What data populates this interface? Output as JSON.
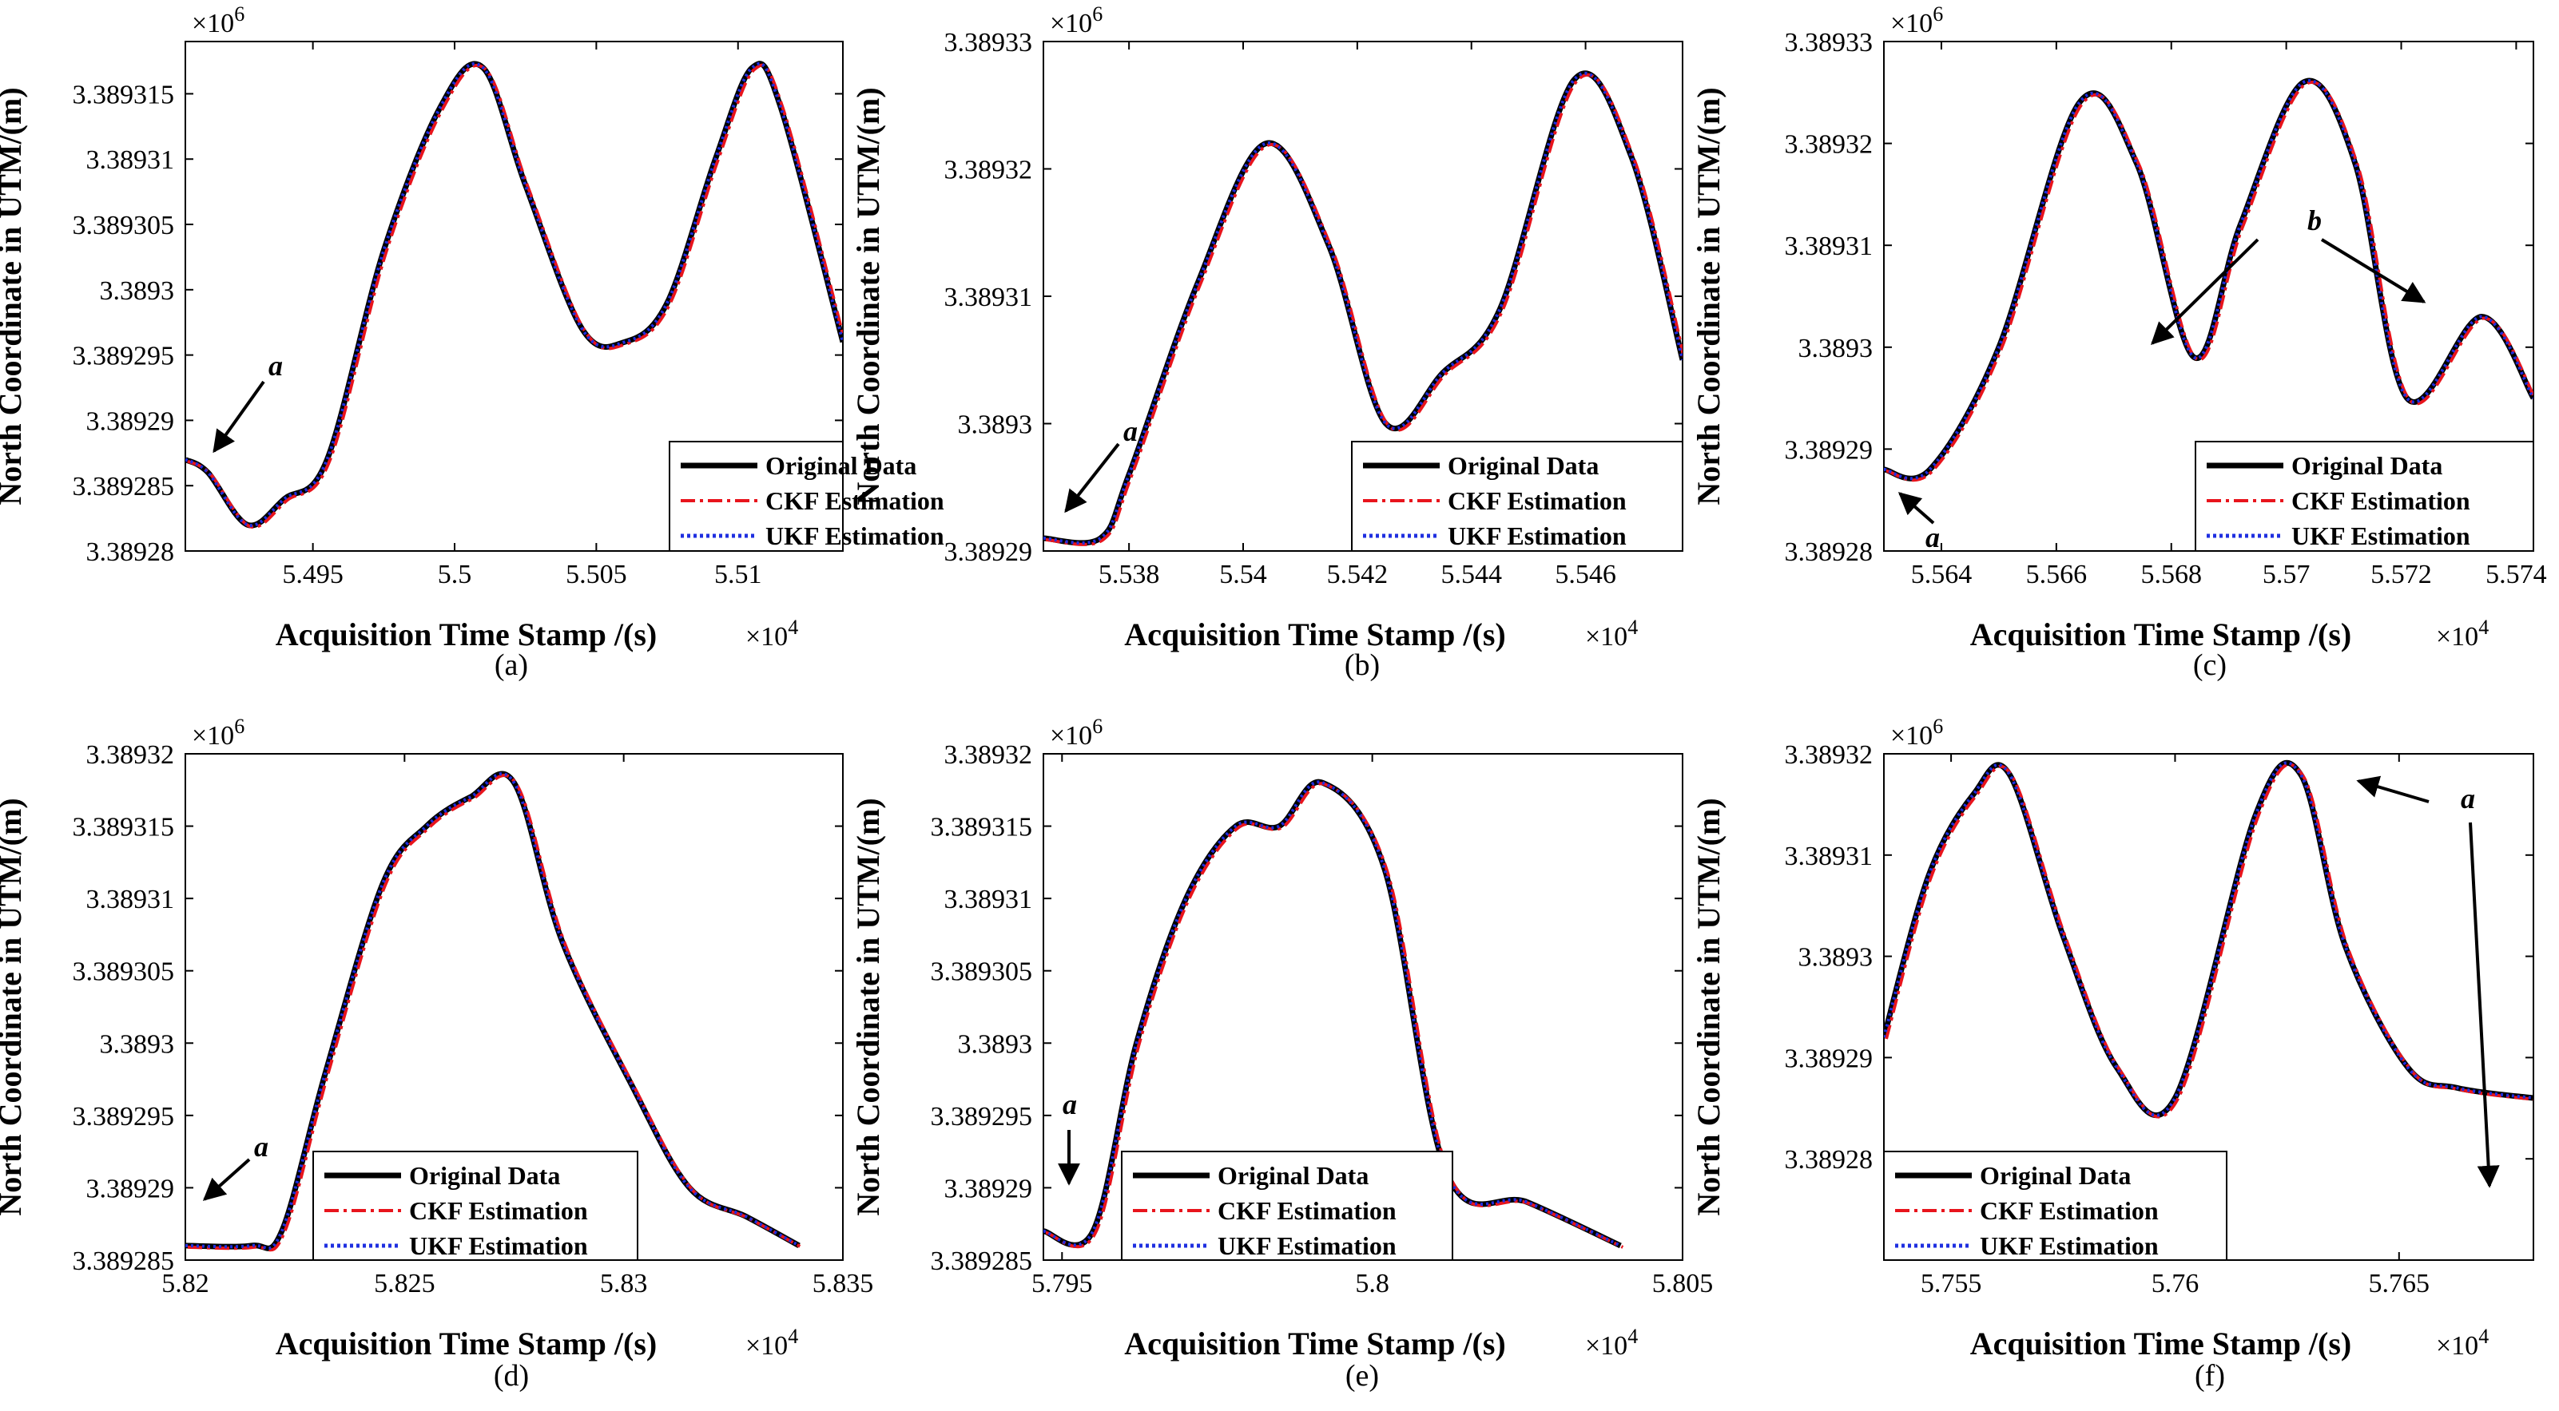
{
  "chart_data": [
    {
      "id": "a",
      "type": "line",
      "caption": "(a)",
      "xlabel": "Acquisition Time Stamp /(s)",
      "ylabel": "North Coordinate in UTM/(m)",
      "x_multiplier": "×10",
      "x_multiplier_exp": "4",
      "y_multiplier": "×10",
      "y_multiplier_exp": "6",
      "xlim": [
        5.4905,
        5.5137
      ],
      "ylim": [
        3.38928,
        3.389319
      ],
      "xticks": [
        5.495,
        5.5,
        5.505,
        5.51
      ],
      "xtick_labels": [
        "5.495",
        "5.5",
        "5.505",
        "5.51"
      ],
      "yticks": [
        3.38928,
        3.389285,
        3.38929,
        3.389295,
        3.3893,
        3.389305,
        3.38931,
        3.389315
      ],
      "ytick_labels": [
        "3.38928",
        "3.389285",
        "3.38929",
        "3.389295",
        "3.3893",
        "3.389305",
        "3.38931",
        "3.389315"
      ],
      "legend_position": "bottom-right",
      "legend": [
        "Original Data",
        "CKF Estimation",
        "UKF Estimation"
      ],
      "series_x": [
        5.4905,
        5.4913,
        5.4927,
        5.494,
        5.4955,
        5.4975,
        5.4995,
        5.501,
        5.5025,
        5.5045,
        5.506,
        5.5075,
        5.5092,
        5.5105,
        5.5115,
        5.5137
      ],
      "series_y": [
        3.389287,
        3.389286,
        3.389282,
        3.389284,
        3.389287,
        3.389303,
        3.389314,
        3.389317,
        3.389308,
        3.389297,
        3.389296,
        3.389299,
        3.38931,
        3.389317,
        3.389314,
        3.389296
      ],
      "annotations": [
        {
          "text": "a",
          "x": 5.4914,
          "y": 3.389294
        }
      ]
    },
    {
      "id": "b",
      "type": "line",
      "caption": "(b)",
      "xlabel": "Acquisition Time Stamp /(s)",
      "ylabel": "North Coordinate in UTM/(m)",
      "x_multiplier": "×10",
      "x_multiplier_exp": "4",
      "y_multiplier": "×10",
      "y_multiplier_exp": "6",
      "xlim": [
        5.5365,
        5.5477
      ],
      "ylim": [
        3.38929,
        3.38933
      ],
      "xticks": [
        5.538,
        5.54,
        5.542,
        5.544,
        5.546
      ],
      "xtick_labels": [
        "5.538",
        "5.54",
        "5.542",
        "5.544",
        "5.546"
      ],
      "yticks": [
        3.38929,
        3.3893,
        3.38931,
        3.38932,
        3.38933
      ],
      "ytick_labels": [
        "3.38929",
        "3.3893",
        "3.38931",
        "3.38932",
        "3.38933"
      ],
      "legend_position": "bottom-right",
      "legend": [
        "Original Data",
        "CKF Estimation",
        "UKF Estimation"
      ],
      "series_x": [
        5.5365,
        5.5375,
        5.538,
        5.5392,
        5.5404,
        5.5415,
        5.5425,
        5.5435,
        5.5445,
        5.5458,
        5.5468,
        5.5477
      ],
      "series_y": [
        3.389291,
        3.389291,
        3.389296,
        3.389311,
        3.389322,
        3.389314,
        3.3893,
        3.389304,
        3.389309,
        3.389327,
        3.389321,
        3.389305
      ],
      "annotations": [
        {
          "text": "a",
          "x": 5.5373,
          "y": 3.389298
        }
      ]
    },
    {
      "id": "c",
      "type": "line",
      "caption": "(c)",
      "xlabel": "Acquisition Time Stamp /(s)",
      "ylabel": "North Coordinate in UTM/(m)",
      "x_multiplier": "×10",
      "x_multiplier_exp": "4",
      "y_multiplier": "×10",
      "y_multiplier_exp": "6",
      "xlim": [
        5.563,
        5.5743
      ],
      "ylim": [
        3.38928,
        3.38933
      ],
      "xticks": [
        5.564,
        5.566,
        5.568,
        5.57,
        5.572,
        5.574
      ],
      "xtick_labels": [
        "5.564",
        "5.566",
        "5.568",
        "5.57",
        "5.572",
        "5.574"
      ],
      "yticks": [
        3.38928,
        3.38929,
        3.3893,
        3.38931,
        3.38932,
        3.38933
      ],
      "ytick_labels": [
        "3.38928",
        "3.38929",
        "3.3893",
        "3.38931",
        "3.38932",
        "3.38933"
      ],
      "legend_position": "bottom-right",
      "legend": [
        "Original Data",
        "CKF Estimation",
        "UKF Estimation"
      ],
      "series_x": [
        5.563,
        5.5638,
        5.565,
        5.5664,
        5.5674,
        5.5684,
        5.5692,
        5.5703,
        5.5712,
        5.5721,
        5.5734,
        5.5743
      ],
      "series_y": [
        3.389288,
        3.389288,
        3.3893,
        3.389324,
        3.389318,
        3.389299,
        3.389312,
        3.389326,
        3.389318,
        3.389295,
        3.389303,
        3.389295
      ],
      "annotations": [
        {
          "text": "b",
          "x": 5.5693,
          "y": 3.38931
        },
        {
          "text": "a",
          "x": 5.5635,
          "y": 3.389283
        }
      ]
    },
    {
      "id": "d",
      "type": "line",
      "caption": "(d)",
      "xlabel": "Acquisition Time Stamp /(s)",
      "ylabel": "North Coordinate in UTM/(m)",
      "x_multiplier": "×10",
      "x_multiplier_exp": "4",
      "y_multiplier": "×10",
      "y_multiplier_exp": "6",
      "xlim": [
        5.82,
        5.835
      ],
      "ylim": [
        3.389285,
        3.38932
      ],
      "xticks": [
        5.82,
        5.825,
        5.83,
        5.835
      ],
      "xtick_labels": [
        "5.82",
        "5.825",
        "5.83",
        "5.835"
      ],
      "yticks": [
        3.389285,
        3.38929,
        3.389295,
        3.3893,
        3.389305,
        3.38931,
        3.389315,
        3.38932
      ],
      "ytick_labels": [
        "3.389285",
        "3.38929",
        "3.389295",
        "3.3893",
        "3.389305",
        "3.38931",
        "3.389315",
        "3.38932"
      ],
      "legend_position": "bottom-center",
      "legend": [
        "Original Data",
        "CKF Estimation",
        "UKF Estimation"
      ],
      "series_x": [
        5.82,
        5.8215,
        5.8222,
        5.8232,
        5.8245,
        5.8255,
        5.8265,
        5.8275,
        5.8286,
        5.8302,
        5.8315,
        5.8328,
        5.834
      ],
      "series_y": [
        3.389286,
        3.389286,
        3.389287,
        3.389298,
        3.389311,
        3.389315,
        3.389317,
        3.389318,
        3.389307,
        3.389297,
        3.38929,
        3.389288,
        3.389286
      ],
      "annotations": [
        {
          "text": "a",
          "x": 5.8213,
          "y": 3.389295
        }
      ]
    },
    {
      "id": "e",
      "type": "line",
      "caption": "(e)",
      "xlabel": "Acquisition Time Stamp /(s)",
      "ylabel": "North Coordinate in UTM/(m)",
      "x_multiplier": "×10",
      "x_multiplier_exp": "4",
      "y_multiplier": "×10",
      "y_multiplier_exp": "6",
      "xlim": [
        5.7947,
        5.805
      ],
      "ylim": [
        3.389285,
        3.38932
      ],
      "xticks": [
        5.795,
        5.8,
        5.805
      ],
      "xtick_labels": [
        "5.795",
        "5.8",
        "5.805"
      ],
      "yticks": [
        3.389285,
        3.38929,
        3.389295,
        3.3893,
        3.389305,
        3.38931,
        3.389315,
        3.38932
      ],
      "ytick_labels": [
        "3.389285",
        "3.38929",
        "3.389295",
        "3.3893",
        "3.389305",
        "3.38931",
        "3.389315",
        "3.38932"
      ],
      "legend_position": "bottom-center",
      "legend": [
        "Original Data",
        "CKF Estimation",
        "UKF Estimation"
      ],
      "series_x": [
        5.7947,
        5.7955,
        5.7962,
        5.797,
        5.7978,
        5.7985,
        5.7992,
        5.8002,
        5.8012,
        5.8025,
        5.804
      ],
      "series_y": [
        3.389287,
        3.389287,
        3.3893,
        3.38931,
        3.389315,
        3.389315,
        3.389318,
        3.389312,
        3.389291,
        3.389289,
        3.389286
      ],
      "annotations": [
        {
          "text": "a",
          "x": 5.7953,
          "y": 3.389292
        }
      ]
    },
    {
      "id": "f",
      "type": "line",
      "caption": "(f)",
      "xlabel": "Acquisition Time Stamp /(s)",
      "ylabel": "North Coordinate in UTM/(m)",
      "x_multiplier": "×10",
      "x_multiplier_exp": "4",
      "y_multiplier": "×10",
      "y_multiplier_exp": "6",
      "xlim": [
        5.7535,
        5.768
      ],
      "ylim": [
        3.38927,
        3.38932
      ],
      "xticks": [
        5.755,
        5.76,
        5.765
      ],
      "xtick_labels": [
        "5.755",
        "5.76",
        "5.765"
      ],
      "yticks": [
        3.38928,
        3.38929,
        3.3893,
        3.38931,
        3.38932
      ],
      "ytick_labels": [
        "3.38928",
        "3.38929",
        "3.3893",
        "3.38931",
        "3.38932"
      ],
      "legend_position": "bottom-left",
      "legend": [
        "Original Data",
        "CKF Estimation",
        "UKF Estimation"
      ],
      "series_x": [
        5.7535,
        5.7545,
        5.7555,
        5.7563,
        5.7575,
        5.7587,
        5.76,
        5.7618,
        5.7628,
        5.7638,
        5.7652,
        5.7663,
        5.768
      ],
      "series_y": [
        3.389292,
        3.389308,
        3.389316,
        3.389318,
        3.389302,
        3.389289,
        3.389286,
        3.389314,
        3.389318,
        3.389301,
        3.389289,
        3.389287,
        3.389286
      ],
      "annotations": [
        {
          "text": "a",
          "x": 5.7658,
          "y": 3.389316
        }
      ]
    }
  ]
}
